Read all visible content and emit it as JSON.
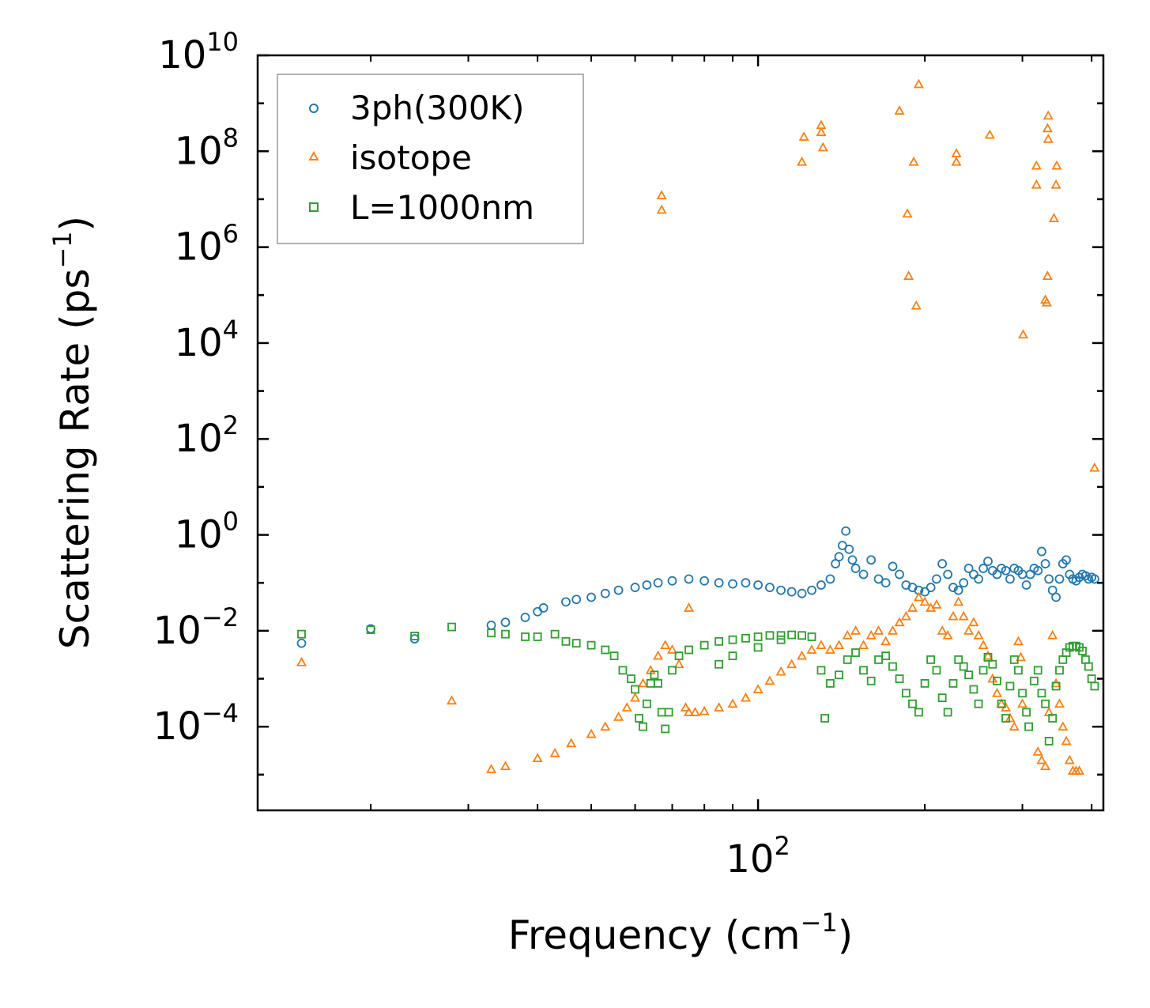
{
  "chart_data": {
    "type": "scatter",
    "title": "",
    "xlabel": {
      "base": "Frequency (cm",
      "sup": "−1",
      "tail": ")"
    },
    "ylabel": {
      "base": "Scattering Rate (ps",
      "sup": "−1",
      "tail": ")"
    },
    "xscale": "log",
    "yscale": "log",
    "xlim": [
      12.5,
      420
    ],
    "ylim": [
      1.8e-06,
      10000000000
    ],
    "x_ticks": [
      {
        "value": 100,
        "base": "10",
        "exp": "2"
      }
    ],
    "y_ticks": [
      {
        "value": 10000000000.0,
        "base": "10",
        "exp": "10"
      },
      {
        "value": 100000000.0,
        "base": "10",
        "exp": "8"
      },
      {
        "value": 1000000.0,
        "base": "10",
        "exp": "6"
      },
      {
        "value": 10000.0,
        "base": "10",
        "exp": "4"
      },
      {
        "value": 100.0,
        "base": "10",
        "exp": "2"
      },
      {
        "value": 1,
        "base": "10",
        "exp": "0"
      },
      {
        "value": 0.01,
        "base": "10",
        "exp": "−2"
      },
      {
        "value": 0.0001,
        "base": "10",
        "exp": "−4"
      }
    ],
    "legend_position": "top-left",
    "series": [
      {
        "name": "3ph(300K)",
        "marker": "circle",
        "color": "#1f77b4",
        "points": [
          [
            15,
            0.0055
          ],
          [
            20,
            0.011
          ],
          [
            24,
            0.0068
          ],
          [
            33,
            0.013
          ],
          [
            35,
            0.015
          ],
          [
            38,
            0.019
          ],
          [
            40,
            0.025
          ],
          [
            41,
            0.03
          ],
          [
            45,
            0.04
          ],
          [
            47,
            0.045
          ],
          [
            50,
            0.05
          ],
          [
            53,
            0.06
          ],
          [
            56,
            0.07
          ],
          [
            60,
            0.08
          ],
          [
            63,
            0.09
          ],
          [
            66,
            0.1
          ],
          [
            70,
            0.11
          ],
          [
            75,
            0.12
          ],
          [
            80,
            0.11
          ],
          [
            85,
            0.1
          ],
          [
            90,
            0.095
          ],
          [
            95,
            0.1
          ],
          [
            100,
            0.09
          ],
          [
            105,
            0.08
          ],
          [
            110,
            0.07
          ],
          [
            115,
            0.065
          ],
          [
            120,
            0.06
          ],
          [
            125,
            0.07
          ],
          [
            130,
            0.09
          ],
          [
            135,
            0.12
          ],
          [
            138,
            0.25
          ],
          [
            140,
            0.35
          ],
          [
            142,
            0.6
          ],
          [
            144,
            1.2
          ],
          [
            146,
            0.5
          ],
          [
            148,
            0.3
          ],
          [
            150,
            0.2
          ],
          [
            155,
            0.15
          ],
          [
            160,
            0.3
          ],
          [
            165,
            0.12
          ],
          [
            170,
            0.1
          ],
          [
            175,
            0.22
          ],
          [
            180,
            0.15
          ],
          [
            185,
            0.09
          ],
          [
            190,
            0.08
          ],
          [
            195,
            0.07
          ],
          [
            200,
            0.065
          ],
          [
            205,
            0.08
          ],
          [
            210,
            0.12
          ],
          [
            215,
            0.25
          ],
          [
            220,
            0.15
          ],
          [
            225,
            0.08
          ],
          [
            230,
            0.07
          ],
          [
            235,
            0.1
          ],
          [
            240,
            0.2
          ],
          [
            245,
            0.15
          ],
          [
            250,
            0.12
          ],
          [
            255,
            0.2
          ],
          [
            260,
            0.28
          ],
          [
            265,
            0.18
          ],
          [
            270,
            0.15
          ],
          [
            275,
            0.2
          ],
          [
            280,
            0.18
          ],
          [
            285,
            0.12
          ],
          [
            290,
            0.2
          ],
          [
            295,
            0.18
          ],
          [
            300,
            0.15
          ],
          [
            305,
            0.09
          ],
          [
            310,
            0.15
          ],
          [
            315,
            0.2
          ],
          [
            320,
            0.18
          ],
          [
            325,
            0.45
          ],
          [
            330,
            0.25
          ],
          [
            335,
            0.12
          ],
          [
            340,
            0.07
          ],
          [
            345,
            0.05
          ],
          [
            350,
            0.12
          ],
          [
            355,
            0.25
          ],
          [
            360,
            0.3
          ],
          [
            365,
            0.15
          ],
          [
            370,
            0.12
          ],
          [
            375,
            0.11
          ],
          [
            380,
            0.13
          ],
          [
            385,
            0.15
          ],
          [
            390,
            0.14
          ],
          [
            395,
            0.12
          ],
          [
            400,
            0.13
          ],
          [
            405,
            0.12
          ]
        ]
      },
      {
        "name": "isotope",
        "marker": "triangle",
        "color": "#ff7f0e",
        "points": [
          [
            15,
            0.0022
          ],
          [
            28,
            0.00035
          ],
          [
            33,
            1.3e-05
          ],
          [
            35,
            1.5e-05
          ],
          [
            40,
            2.2e-05
          ],
          [
            43,
            2.8e-05
          ],
          [
            46,
            4.5e-05
          ],
          [
            50,
            7e-05
          ],
          [
            53,
            0.0001
          ],
          [
            56,
            0.00016
          ],
          [
            58,
            0.00025
          ],
          [
            60,
            0.0004
          ],
          [
            62,
            0.0008
          ],
          [
            64,
            0.0015
          ],
          [
            66,
            0.003
          ],
          [
            68,
            0.005
          ],
          [
            70,
            0.004
          ],
          [
            72,
            0.002
          ],
          [
            74,
            0.00025
          ],
          [
            75,
            0.0002
          ],
          [
            77,
            0.0002
          ],
          [
            80,
            0.00021
          ],
          [
            85,
            0.00025
          ],
          [
            90,
            0.0003
          ],
          [
            95,
            0.0004
          ],
          [
            100,
            0.0006
          ],
          [
            105,
            0.0009
          ],
          [
            110,
            0.0014
          ],
          [
            115,
            0.002
          ],
          [
            120,
            0.003
          ],
          [
            125,
            0.004
          ],
          [
            130,
            0.005
          ],
          [
            135,
            0.004
          ],
          [
            140,
            0.005
          ],
          [
            145,
            0.008
          ],
          [
            150,
            0.01
          ],
          [
            155,
            0.005
          ],
          [
            160,
            0.008
          ],
          [
            165,
            0.01
          ],
          [
            170,
            0.006
          ],
          [
            175,
            0.01
          ],
          [
            180,
            0.015
          ],
          [
            185,
            0.02
          ],
          [
            190,
            0.03
          ],
          [
            195,
            0.05
          ],
          [
            200,
            0.04
          ],
          [
            205,
            0.03
          ],
          [
            210,
            0.035
          ],
          [
            215,
            0.01
          ],
          [
            220,
            0.008
          ],
          [
            225,
            0.02
          ],
          [
            230,
            0.04
          ],
          [
            235,
            0.02
          ],
          [
            240,
            0.01
          ],
          [
            245,
            0.015
          ],
          [
            250,
            0.008
          ],
          [
            255,
            0.005
          ],
          [
            260,
            0.003
          ],
          [
            265,
            0.001
          ],
          [
            270,
            0.0005
          ],
          [
            275,
            0.0003
          ],
          [
            280,
            0.00025
          ],
          [
            285,
            0.00015
          ],
          [
            290,
            0.0001
          ],
          [
            295,
            0.006
          ],
          [
            300,
            0.0003
          ],
          [
            320,
            3e-05
          ],
          [
            325,
            2e-05
          ],
          [
            330,
            1.5e-05
          ],
          [
            335,
            0.0002
          ],
          [
            340,
            0.008
          ],
          [
            345,
            0.0008
          ],
          [
            350,
            0.0003
          ],
          [
            355,
            0.0001
          ],
          [
            360,
            5e-05
          ],
          [
            365,
            2e-05
          ],
          [
            370,
            1.2e-05
          ],
          [
            375,
            1.2e-05
          ],
          [
            380,
            1.2e-05
          ],
          [
            75,
            0.03
          ],
          [
            67,
            6000000.0
          ],
          [
            67,
            12000000.0
          ],
          [
            120,
            60000000.0
          ],
          [
            121,
            200000000.0
          ],
          [
            130,
            250000000.0
          ],
          [
            130,
            350000000.0
          ],
          [
            131,
            120000000.0
          ],
          [
            180,
            700000000.0
          ],
          [
            186,
            5000000.0
          ],
          [
            187,
            250000.0
          ],
          [
            191,
            60000000.0
          ],
          [
            193,
            60000.0
          ],
          [
            195,
            2500000000.0
          ],
          [
            228,
            60000000.0
          ],
          [
            228,
            90000000.0
          ],
          [
            262,
            220000000.0
          ],
          [
            301,
            15000.0
          ],
          [
            318,
            20000000.0
          ],
          [
            318,
            50000000.0
          ],
          [
            330,
            80000.0
          ],
          [
            332,
            70000.0
          ],
          [
            333,
            250000.0
          ],
          [
            333,
            300000000.0
          ],
          [
            334,
            550000000.0
          ],
          [
            334,
            180000000.0
          ],
          [
            345,
            20000000.0
          ],
          [
            346,
            50000000.0
          ],
          [
            342,
            4000000.0
          ],
          [
            405,
            25
          ],
          [
            298,
            0.0028
          ]
        ]
      },
      {
        "name": "L=1000nm",
        "marker": "square",
        "color": "#2ca02c",
        "points": [
          [
            15,
            0.0085
          ],
          [
            20,
            0.0105
          ],
          [
            24,
            0.0078
          ],
          [
            28,
            0.012
          ],
          [
            33,
            0.009
          ],
          [
            35,
            0.0085
          ],
          [
            38,
            0.0075
          ],
          [
            40,
            0.0075
          ],
          [
            43,
            0.0085
          ],
          [
            45,
            0.006
          ],
          [
            47,
            0.0055
          ],
          [
            50,
            0.005
          ],
          [
            53,
            0.004
          ],
          [
            55,
            0.003
          ],
          [
            57,
            0.0015
          ],
          [
            59,
            0.001
          ],
          [
            60,
            0.0006
          ],
          [
            61,
            0.00015
          ],
          [
            62,
            0.0001
          ],
          [
            63,
            0.0003
          ],
          [
            64,
            0.0008
          ],
          [
            65,
            0.0012
          ],
          [
            66,
            0.0008
          ],
          [
            67,
            0.0002
          ],
          [
            68,
            9e-05
          ],
          [
            69,
            0.0002
          ],
          [
            70,
            0.0015
          ],
          [
            72,
            0.003
          ],
          [
            75,
            0.004
          ],
          [
            80,
            0.005
          ],
          [
            85,
            0.006
          ],
          [
            90,
            0.0065
          ],
          [
            95,
            0.007
          ],
          [
            100,
            0.0075
          ],
          [
            105,
            0.008
          ],
          [
            110,
            0.008
          ],
          [
            115,
            0.0082
          ],
          [
            120,
            0.008
          ],
          [
            125,
            0.0075
          ],
          [
            130,
            0.0015
          ],
          [
            135,
            0.0008
          ],
          [
            140,
            0.0012
          ],
          [
            145,
            0.0025
          ],
          [
            150,
            0.0035
          ],
          [
            155,
            0.0015
          ],
          [
            160,
            0.0009
          ],
          [
            165,
            0.0025
          ],
          [
            170,
            0.003
          ],
          [
            175,
            0.0018
          ],
          [
            180,
            0.001
          ],
          [
            185,
            0.0005
          ],
          [
            190,
            0.0003
          ],
          [
            195,
            0.0002
          ],
          [
            200,
            0.0008
          ],
          [
            205,
            0.0025
          ],
          [
            210,
            0.0015
          ],
          [
            215,
            0.0004
          ],
          [
            220,
            0.0002
          ],
          [
            225,
            0.0008
          ],
          [
            230,
            0.0025
          ],
          [
            235,
            0.0018
          ],
          [
            240,
            0.0012
          ],
          [
            245,
            0.0006
          ],
          [
            250,
            0.0003
          ],
          [
            255,
            0.0015
          ],
          [
            260,
            0.0028
          ],
          [
            265,
            0.002
          ],
          [
            270,
            0.0009
          ],
          [
            275,
            0.0003
          ],
          [
            280,
            0.00015
          ],
          [
            285,
            0.0007
          ],
          [
            290,
            0.0025
          ],
          [
            295,
            0.0015
          ],
          [
            300,
            0.0005
          ],
          [
            305,
            0.0002
          ],
          [
            308,
            0.0001
          ],
          [
            315,
            0.0009
          ],
          [
            320,
            0.0015
          ],
          [
            325,
            0.0005
          ],
          [
            330,
            0.0003
          ],
          [
            335,
            5e-05
          ],
          [
            340,
            0.00015
          ],
          [
            345,
            0.0007
          ],
          [
            350,
            0.0015
          ],
          [
            355,
            0.0025
          ],
          [
            360,
            0.0035
          ],
          [
            365,
            0.0045
          ],
          [
            370,
            0.0048
          ],
          [
            375,
            0.0048
          ],
          [
            380,
            0.0045
          ],
          [
            385,
            0.0038
          ],
          [
            390,
            0.0025
          ],
          [
            395,
            0.0018
          ],
          [
            400,
            0.001
          ],
          [
            405,
            0.0007
          ],
          [
            100,
            0.0045
          ],
          [
            132,
            0.00015
          ],
          [
            110,
            0.0065
          ],
          [
            85,
            0.002
          ],
          [
            90,
            0.003
          ]
        ]
      }
    ]
  }
}
